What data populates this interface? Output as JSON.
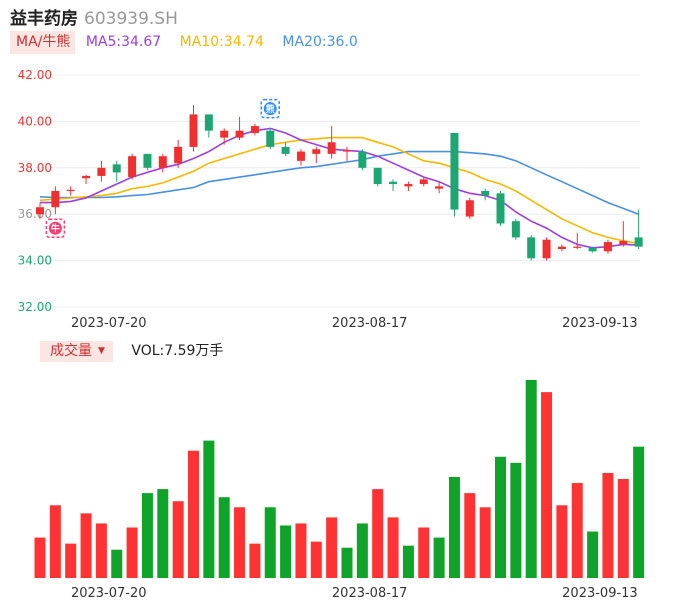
{
  "header": {
    "stock_name": "益丰药房",
    "stock_code": "603939.SH"
  },
  "ma_legend": {
    "tab_label": "MA/牛熊",
    "items": [
      {
        "label": "MA5:34.67",
        "color": "#9c3fe0"
      },
      {
        "label": "MA10:34.74",
        "color": "#f5b800"
      },
      {
        "label": "MA20:36.0",
        "color": "#4a90e2"
      }
    ]
  },
  "volume_legend": {
    "tab_label": "成交量",
    "text": "VOL:7.59万手"
  },
  "markers": {
    "bull_label": "牛",
    "bear_label": "熊"
  },
  "colors": {
    "up": "#f03030",
    "down": "#1ea672",
    "vol_up": "#f33",
    "vol_down": "#0fa32a",
    "grid": "#ececec"
  },
  "chart_data": [
    {
      "type": "candlestick",
      "title": "",
      "x_tick_labels": [
        "2023-07-20",
        "2023-08-17",
        "2023-09-13"
      ],
      "x_tick_indices": [
        5,
        22,
        37
      ],
      "y_tick_labels": [
        "42.00",
        "40.00",
        "38.00",
        "36.00",
        "34.00",
        "32.00"
      ],
      "y_ticks": [
        42,
        40,
        38,
        36,
        34,
        32
      ],
      "ylim": [
        32,
        42
      ],
      "grid": true,
      "candles": [
        {
          "o": 36.0,
          "c": 36.3,
          "h": 36.5,
          "l": 35.8
        },
        {
          "o": 36.3,
          "c": 37.0,
          "h": 37.2,
          "l": 36.0
        },
        {
          "o": 37.0,
          "c": 37.05,
          "h": 37.2,
          "l": 36.8
        },
        {
          "o": 37.55,
          "c": 37.65,
          "h": 37.7,
          "l": 37.3
        },
        {
          "o": 37.65,
          "c": 38.0,
          "h": 38.3,
          "l": 37.4
        },
        {
          "o": 38.15,
          "c": 37.8,
          "h": 38.3,
          "l": 37.4
        },
        {
          "o": 37.6,
          "c": 38.5,
          "h": 38.6,
          "l": 37.5
        },
        {
          "o": 38.6,
          "c": 38.0,
          "h": 38.6,
          "l": 37.9
        },
        {
          "o": 38.0,
          "c": 38.5,
          "h": 38.6,
          "l": 37.8
        },
        {
          "o": 38.2,
          "c": 38.9,
          "h": 39.2,
          "l": 38.0
        },
        {
          "o": 38.9,
          "c": 40.3,
          "h": 40.7,
          "l": 38.7
        },
        {
          "o": 40.3,
          "c": 39.6,
          "h": 40.3,
          "l": 39.3
        },
        {
          "o": 39.3,
          "c": 39.6,
          "h": 39.7,
          "l": 39.0
        },
        {
          "o": 39.3,
          "c": 39.6,
          "h": 40.2,
          "l": 39.2
        },
        {
          "o": 39.5,
          "c": 39.8,
          "h": 39.9,
          "l": 39.4
        },
        {
          "o": 39.6,
          "c": 38.9,
          "h": 39.7,
          "l": 38.8
        },
        {
          "o": 38.9,
          "c": 38.6,
          "h": 39.1,
          "l": 38.5
        },
        {
          "o": 38.3,
          "c": 38.7,
          "h": 38.8,
          "l": 38.1
        },
        {
          "o": 38.6,
          "c": 38.8,
          "h": 38.9,
          "l": 38.2
        },
        {
          "o": 38.6,
          "c": 39.1,
          "h": 39.8,
          "l": 38.4
        },
        {
          "o": 38.7,
          "c": 38.75,
          "h": 38.9,
          "l": 38.3
        },
        {
          "o": 38.7,
          "c": 38.0,
          "h": 38.8,
          "l": 37.9
        },
        {
          "o": 38.0,
          "c": 37.3,
          "h": 38.0,
          "l": 37.2
        },
        {
          "o": 37.4,
          "c": 37.3,
          "h": 37.5,
          "l": 37.0
        },
        {
          "o": 37.2,
          "c": 37.3,
          "h": 37.4,
          "l": 37.0
        },
        {
          "o": 37.3,
          "c": 37.5,
          "h": 37.6,
          "l": 37.2
        },
        {
          "o": 37.1,
          "c": 37.2,
          "h": 37.4,
          "l": 36.9
        },
        {
          "o": 39.5,
          "c": 36.2,
          "h": 39.5,
          "l": 35.9
        },
        {
          "o": 35.9,
          "c": 36.6,
          "h": 36.7,
          "l": 35.8
        },
        {
          "o": 37.0,
          "c": 36.8,
          "h": 37.1,
          "l": 36.6
        },
        {
          "o": 36.9,
          "c": 35.6,
          "h": 37.0,
          "l": 35.5
        },
        {
          "o": 35.7,
          "c": 35.0,
          "h": 35.8,
          "l": 34.9
        },
        {
          "o": 35.0,
          "c": 34.1,
          "h": 35.1,
          "l": 34.0
        },
        {
          "o": 34.1,
          "c": 34.9,
          "h": 35.0,
          "l": 34.0
        },
        {
          "o": 34.5,
          "c": 34.6,
          "h": 34.7,
          "l": 34.4
        },
        {
          "o": 34.6,
          "c": 34.6,
          "h": 35.2,
          "l": 34.5
        },
        {
          "o": 34.55,
          "c": 34.4,
          "h": 34.6,
          "l": 34.35
        },
        {
          "o": 34.4,
          "c": 34.8,
          "h": 34.9,
          "l": 34.3
        },
        {
          "o": 34.7,
          "c": 34.85,
          "h": 35.7,
          "l": 34.6
        },
        {
          "o": 35.0,
          "c": 34.6,
          "h": 36.2,
          "l": 34.5
        }
      ],
      "ma5": [
        36.5,
        36.5,
        36.55,
        36.7,
        37.0,
        37.3,
        37.6,
        37.8,
        38.0,
        38.15,
        38.4,
        38.7,
        39.1,
        39.4,
        39.6,
        39.7,
        39.5,
        39.2,
        39.0,
        38.8,
        38.75,
        38.7,
        38.5,
        38.2,
        37.9,
        37.6,
        37.4,
        37.1,
        36.9,
        36.8,
        36.6,
        36.1,
        35.7,
        35.4,
        35.0,
        34.7,
        34.55,
        34.6,
        34.7,
        34.67
      ],
      "ma10": [
        36.6,
        36.65,
        36.7,
        36.75,
        36.8,
        36.9,
        37.1,
        37.2,
        37.35,
        37.6,
        37.85,
        38.2,
        38.4,
        38.6,
        38.8,
        39.0,
        39.1,
        39.2,
        39.25,
        39.3,
        39.3,
        39.3,
        39.1,
        38.9,
        38.6,
        38.3,
        38.2,
        38.0,
        37.8,
        37.5,
        37.3,
        37.0,
        36.6,
        36.2,
        35.8,
        35.5,
        35.2,
        35.0,
        34.85,
        34.74
      ],
      "ma20": [
        36.75,
        36.72,
        36.72,
        36.72,
        36.72,
        36.75,
        36.8,
        36.85,
        36.95,
        37.05,
        37.15,
        37.4,
        37.5,
        37.6,
        37.7,
        37.8,
        37.9,
        38.0,
        38.05,
        38.15,
        38.25,
        38.35,
        38.5,
        38.6,
        38.7,
        38.7,
        38.7,
        38.7,
        38.65,
        38.6,
        38.5,
        38.3,
        38.0,
        37.7,
        37.4,
        37.1,
        36.8,
        36.5,
        36.25,
        36.0
      ]
    },
    {
      "type": "bar",
      "title": "",
      "x_tick_labels": [
        "2023-07-20",
        "2023-08-17",
        "2023-09-13"
      ],
      "x_tick_indices": [
        5,
        22,
        37
      ],
      "volume_units": [
        2.0,
        3.6,
        1.7,
        3.2,
        2.7,
        1.4,
        2.5,
        4.2,
        4.4,
        3.8,
        6.3,
        6.8,
        4.0,
        3.5,
        1.7,
        3.5,
        2.6,
        2.7,
        1.8,
        3.0,
        1.5,
        2.7,
        4.4,
        3.0,
        1.6,
        2.5,
        2.0,
        5.0,
        4.2,
        3.5,
        6.0,
        5.7,
        9.8,
        9.2,
        3.6,
        4.7,
        2.3,
        5.2,
        4.9,
        6.5
      ],
      "up_flags": [
        true,
        true,
        true,
        true,
        true,
        false,
        true,
        false,
        false,
        true,
        true,
        false,
        false,
        true,
        true,
        false,
        false,
        true,
        true,
        true,
        false,
        false,
        true,
        true,
        false,
        true,
        false,
        false,
        true,
        true,
        false,
        false,
        false,
        true,
        true,
        true,
        false,
        true,
        true,
        false
      ]
    }
  ]
}
